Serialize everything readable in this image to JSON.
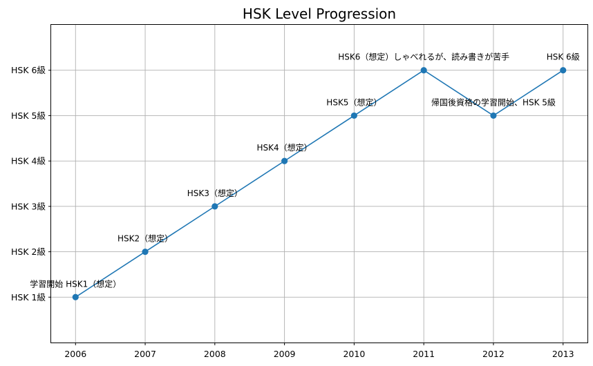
{
  "chart_data": {
    "type": "line",
    "title": "HSK Level Progression",
    "xlabel": "",
    "ylabel": "",
    "x": [
      2006,
      2007,
      2008,
      2009,
      2010,
      2011,
      2012,
      2013
    ],
    "x_tick_labels": [
      "2006",
      "2007",
      "2008",
      "2009",
      "2010",
      "2011",
      "2012",
      "2013"
    ],
    "y_tick_values": [
      1,
      2,
      3,
      4,
      5,
      6
    ],
    "y_tick_labels": [
      "HSK 1級",
      "HSK 2級",
      "HSK 3級",
      "HSK 4級",
      "HSK 5級",
      "HSK 6級"
    ],
    "xlim": [
      2005.65,
      2013.35
    ],
    "ylim": [
      0,
      7
    ],
    "grid": true,
    "series": [
      {
        "values": [
          1,
          2,
          3,
          4,
          5,
          6,
          5,
          6
        ],
        "color": "#1f77b4"
      }
    ],
    "annotations": [
      "学習開始 HSK1（想定）",
      "HSK2（想定）",
      "HSK3（想定）",
      "HSK4（想定）",
      "HSK5（想定）",
      "HSK6（想定）しゃべれるが、読み書きが苦手",
      "帰国後資格の学習開始、HSK 5級",
      "HSK 6級"
    ]
  }
}
